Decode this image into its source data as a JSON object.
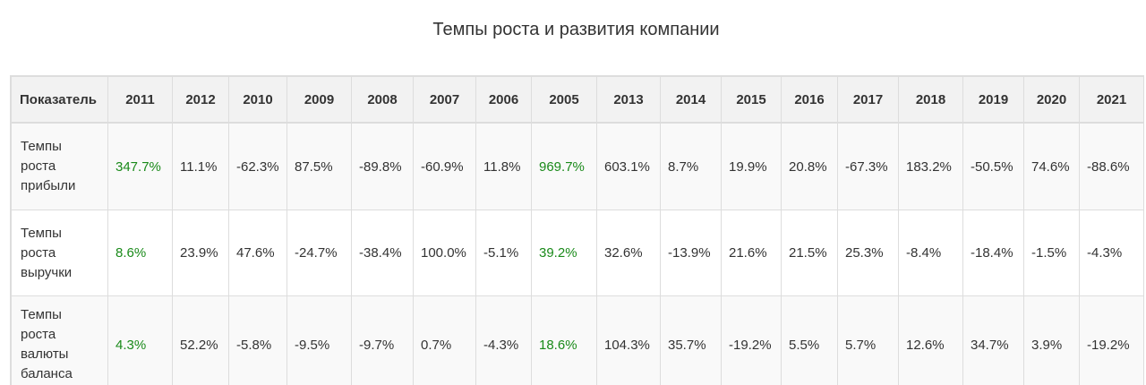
{
  "page": {
    "title": "Темпы роста и развития компании"
  },
  "colors": {
    "highlight_text": "#1a8a1a",
    "header_bg": "#f2f2f2",
    "stripe_bg": "#f9f9f9",
    "border": "#dddddd"
  },
  "table": {
    "header_first": "Показатель",
    "years": [
      "2011",
      "2012",
      "2010",
      "2009",
      "2008",
      "2007",
      "2006",
      "2005",
      "2013",
      "2014",
      "2015",
      "2016",
      "2017",
      "2018",
      "2019",
      "2020",
      "2021"
    ],
    "highlighted_columns": [
      "2011",
      "2005"
    ],
    "rows": [
      {
        "label": "Темпы роста прибыли",
        "values": [
          "347.7%",
          "11.1%",
          "-62.3%",
          "87.5%",
          "-89.8%",
          "-60.9%",
          "11.8%",
          "969.7%",
          "603.1%",
          "8.7%",
          "19.9%",
          "20.8%",
          "-67.3%",
          "183.2%",
          "-50.5%",
          "74.6%",
          "-88.6%"
        ]
      },
      {
        "label": "Темпы роста выручки",
        "values": [
          "8.6%",
          "23.9%",
          "47.6%",
          "-24.7%",
          "-38.4%",
          "100.0%",
          "-5.1%",
          "39.2%",
          "32.6%",
          "-13.9%",
          "21.6%",
          "21.5%",
          "25.3%",
          "-8.4%",
          "-18.4%",
          "-1.5%",
          "-4.3%"
        ]
      },
      {
        "label": "Темпы роста валюты баланса",
        "values": [
          "4.3%",
          "52.2%",
          "-5.8%",
          "-9.5%",
          "-9.7%",
          "0.7%",
          "-4.3%",
          "18.6%",
          "104.3%",
          "35.7%",
          "-19.2%",
          "5.5%",
          "5.7%",
          "12.6%",
          "34.7%",
          "3.9%",
          "-19.2%"
        ]
      }
    ]
  }
}
